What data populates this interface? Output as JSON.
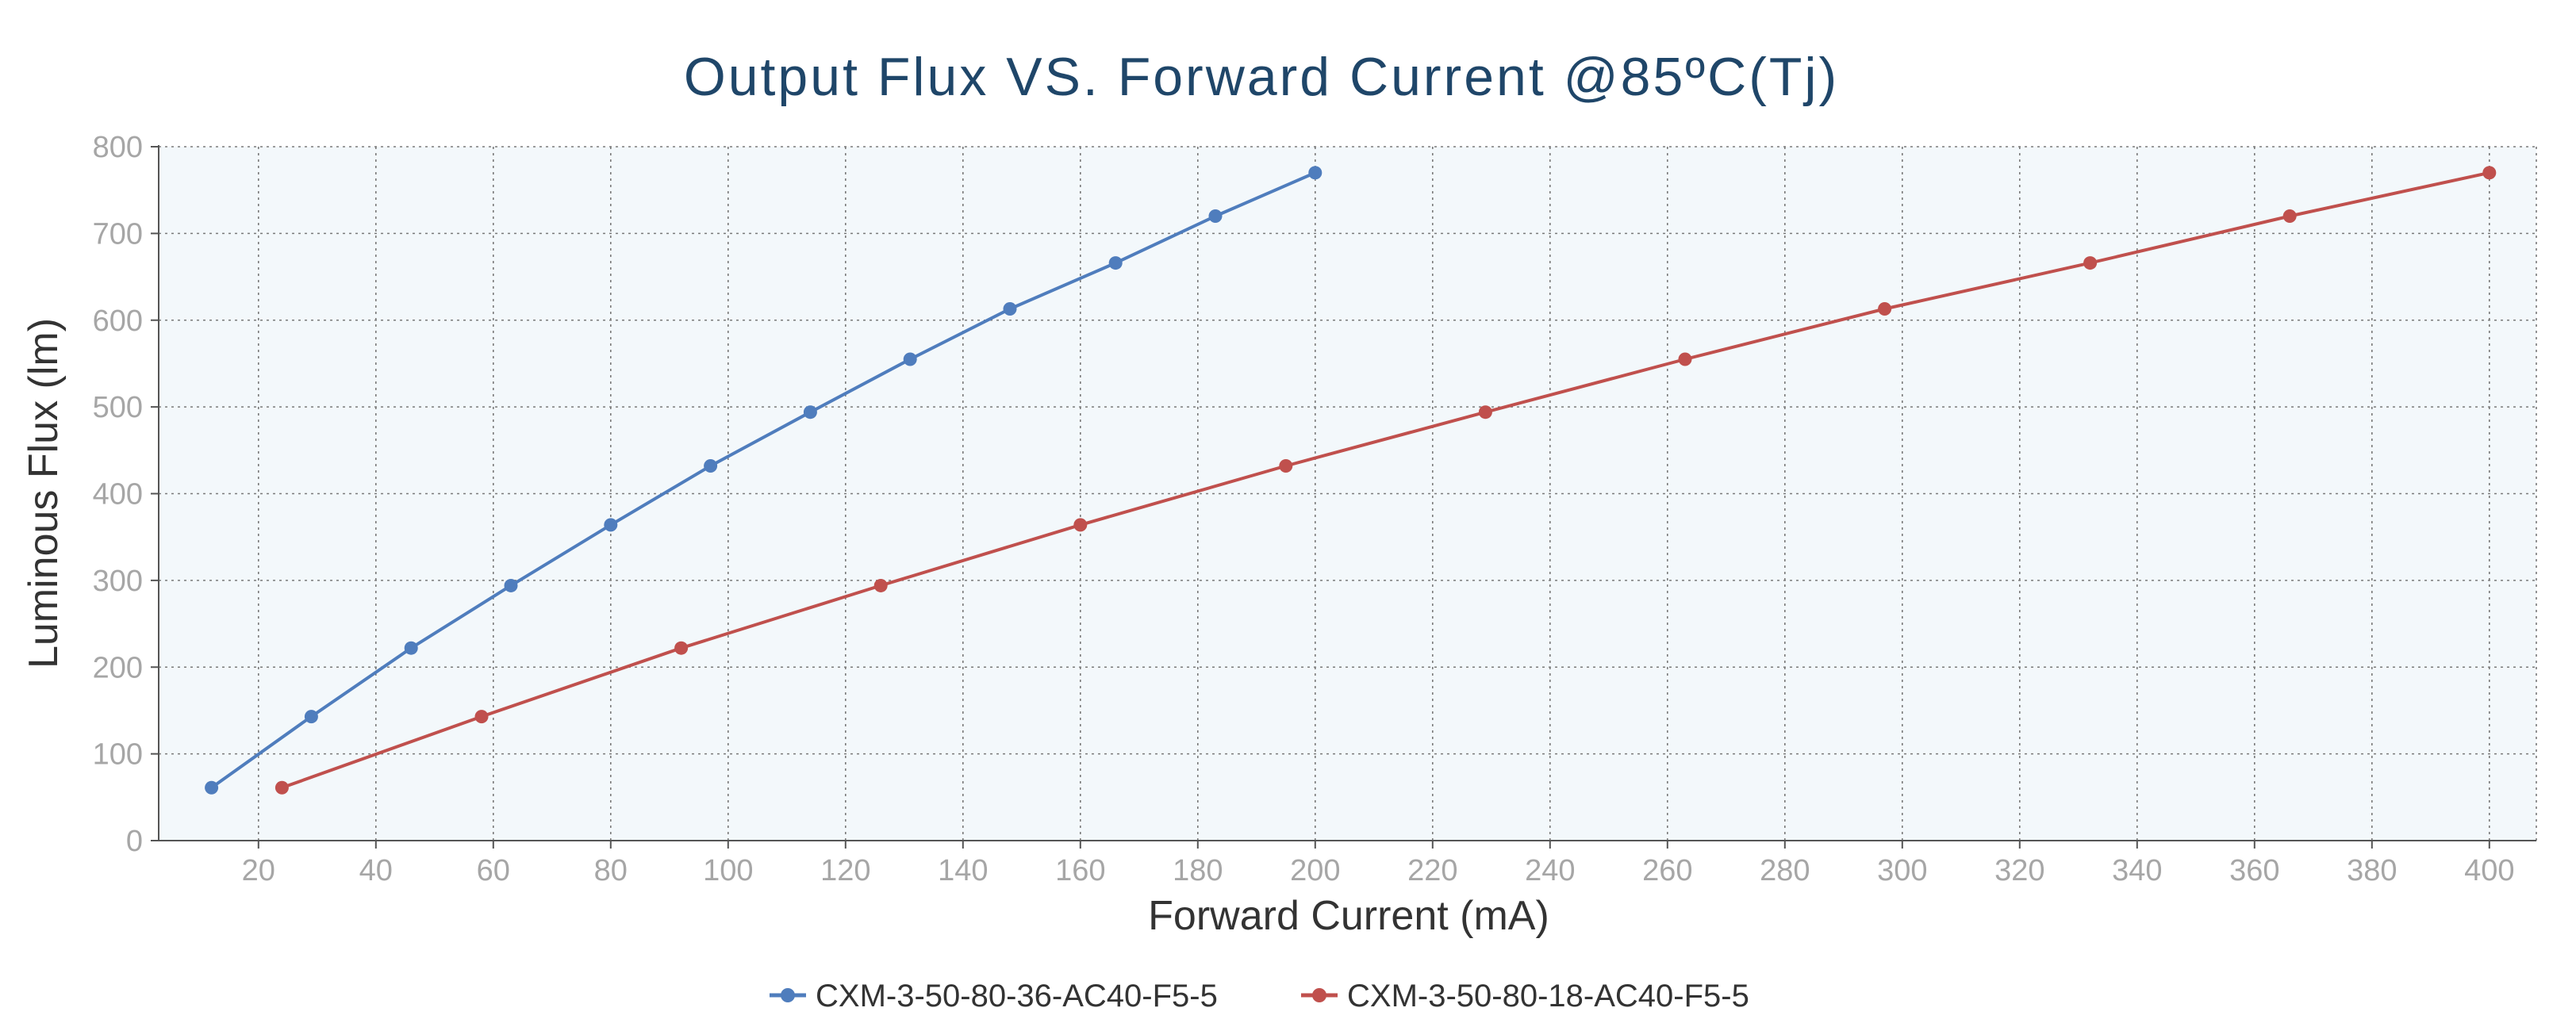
{
  "chart_data": {
    "type": "line",
    "title": "Output Flux VS. Forward Current @85ºC(Tj)",
    "xlabel": "Forward Current (mA)",
    "ylabel": "Luminous Flux (lm)",
    "xlim": [
      3,
      408
    ],
    "ylim": [
      0,
      800
    ],
    "xticks": [
      20,
      40,
      60,
      80,
      100,
      120,
      140,
      160,
      180,
      200,
      220,
      240,
      260,
      280,
      300,
      320,
      340,
      360,
      380,
      400
    ],
    "yticks": [
      0,
      100,
      200,
      300,
      400,
      500,
      600,
      700,
      800
    ],
    "grid": true,
    "legend_position": "bottom",
    "series": [
      {
        "name": "CXM-3-50-80-36-AC40-F5-5",
        "color": "#4f7dbd",
        "x": [
          12,
          29,
          46,
          63,
          80,
          97,
          114,
          131,
          148,
          166,
          183,
          200
        ],
        "y": [
          61,
          143,
          222,
          294,
          364,
          432,
          494,
          555,
          613,
          666,
          720,
          770
        ]
      },
      {
        "name": "CXM-3-50-80-18-AC40-F5-5",
        "color": "#c0504d",
        "x": [
          24,
          58,
          92,
          126,
          160,
          195,
          229,
          263,
          297,
          332,
          366,
          400
        ],
        "y": [
          61,
          143,
          222,
          294,
          364,
          432,
          494,
          555,
          613,
          666,
          720,
          770
        ]
      }
    ]
  },
  "colors": {
    "plot_background": "#f3f8fb",
    "title": "#1f4669"
  }
}
